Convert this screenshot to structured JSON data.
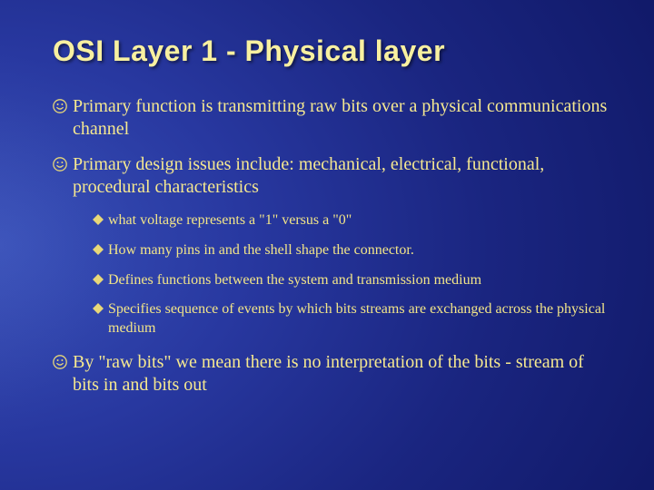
{
  "colors": {
    "title": "#f8f0a0",
    "body_text": "#f5e890",
    "sub_text": "#f2e588",
    "bullet_icon": "#e8d878",
    "sub_icon": "#e8d878"
  },
  "title": "OSI Layer 1 - Physical layer",
  "bullets": [
    {
      "text": "Primary function is transmitting raw bits over a physical communications channel"
    },
    {
      "text": "Primary design issues include: mechanical, electrical, functional, procedural characteristics",
      "subs": [
        "what voltage represents a \"1\" versus a \"0\"",
        "How many pins in and the shell shape the connector.",
        "Defines functions between the system and transmission medium",
        "Specifies sequence of events by which bits streams are exchanged across the physical medium"
      ]
    },
    {
      "text": "By \"raw bits\" we mean there is no interpretation of the bits - stream of bits in and bits out"
    }
  ]
}
